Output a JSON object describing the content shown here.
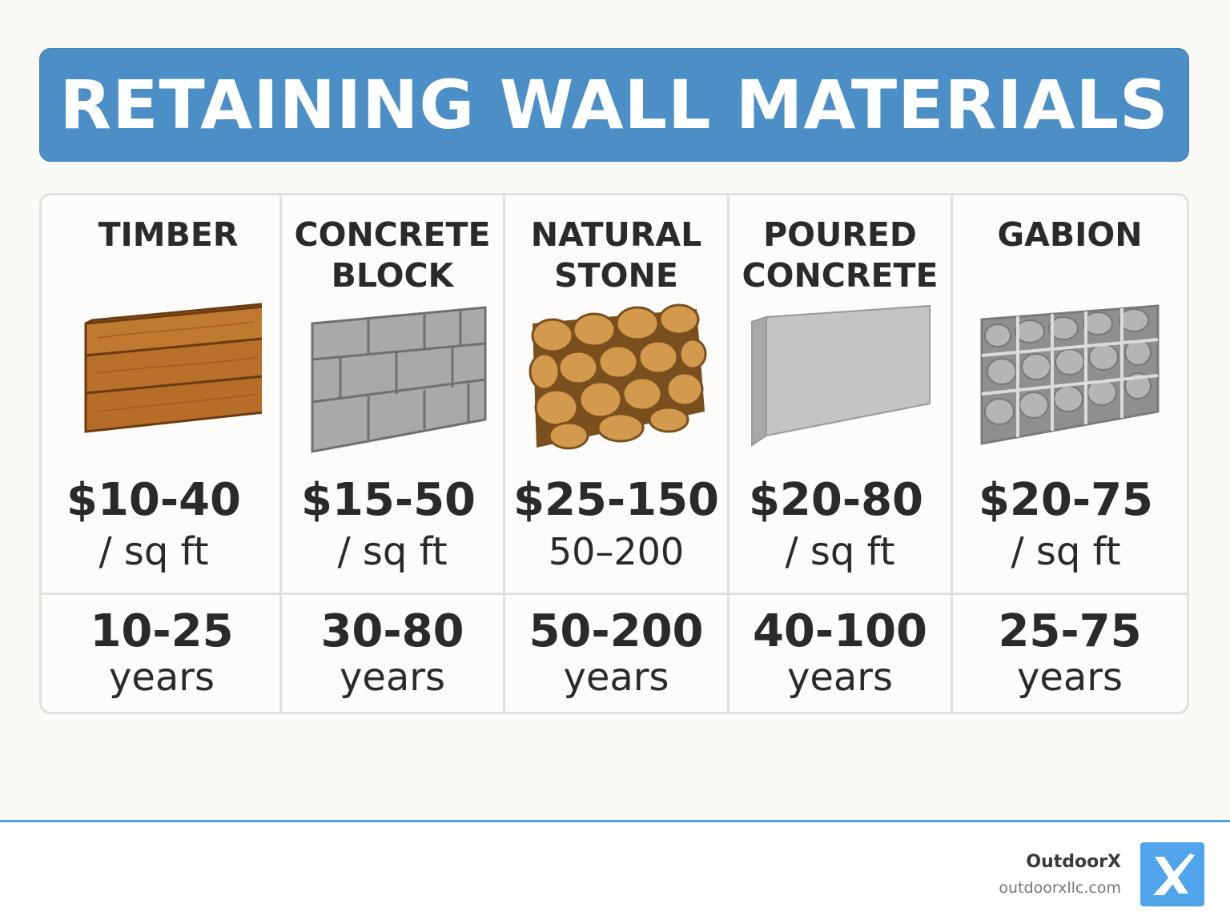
{
  "title": "RETAINING WALL MATERIALS",
  "colors": {
    "title_bg": "#4c8fc7",
    "accent_line": "#4aa3e8",
    "logo_bg": "#4fa4ea"
  },
  "materials": [
    {
      "name_line1": "TIMBER",
      "name_line2": "",
      "icon": "timber-wall-icon",
      "price": "$10-40",
      "price_unit": "/ sq ft",
      "lifespan": "10-25",
      "lifespan_unit": "years"
    },
    {
      "name_line1": "CONCRETE",
      "name_line2": "BLOCK",
      "icon": "concrete-block-wall-icon",
      "price": "$15-50",
      "price_unit": "/ sq ft",
      "lifespan": "30-80",
      "lifespan_unit": "years"
    },
    {
      "name_line1": "NATURAL",
      "name_line2": "STONE",
      "icon": "natural-stone-wall-icon",
      "price": "$25-150",
      "price_unit": "50–200",
      "lifespan": "50-200",
      "lifespan_unit": "years"
    },
    {
      "name_line1": "POURED",
      "name_line2": "CONCRETE",
      "icon": "poured-concrete-wall-icon",
      "price": "$20-80",
      "price_unit": "/ sq ft",
      "lifespan": "40-100",
      "lifespan_unit": "years"
    },
    {
      "name_line1": "GABION",
      "name_line2": "",
      "icon": "gabion-wall-icon",
      "price": "$20-75",
      "price_unit": "/ sq ft",
      "lifespan": "25-75",
      "lifespan_unit": "years"
    }
  ],
  "footer": {
    "brand": "OutdoorX",
    "website": "outdoorxllc.com",
    "logo_letter": "X"
  }
}
